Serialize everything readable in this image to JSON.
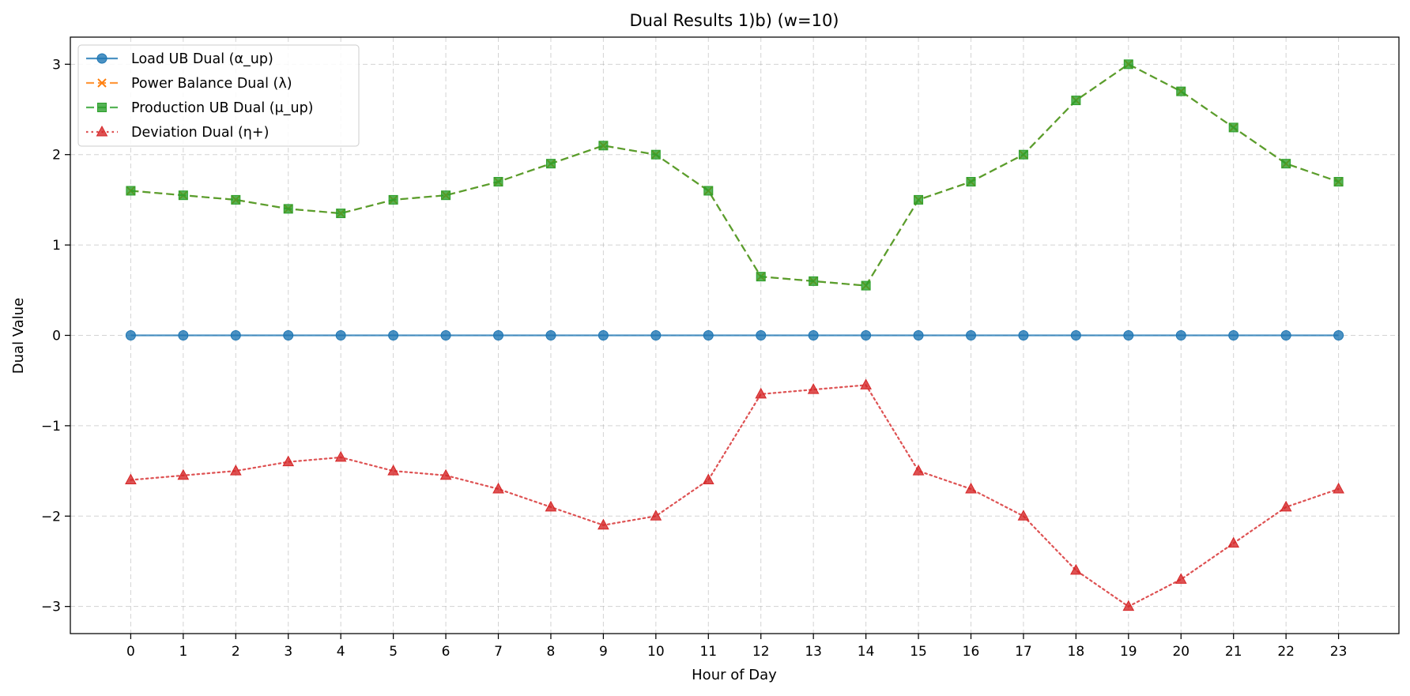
{
  "chart_data": {
    "type": "line",
    "title": "Dual Results 1)b) (w=10)",
    "xlabel": "Hour of Day",
    "ylabel": "Dual Value",
    "x": [
      0,
      1,
      2,
      3,
      4,
      5,
      6,
      7,
      8,
      9,
      10,
      11,
      12,
      13,
      14,
      15,
      16,
      17,
      18,
      19,
      20,
      21,
      22,
      23
    ],
    "xticks": [
      "0",
      "1",
      "2",
      "3",
      "4",
      "5",
      "6",
      "7",
      "8",
      "9",
      "10",
      "11",
      "12",
      "13",
      "14",
      "15",
      "16",
      "17",
      "18",
      "19",
      "20",
      "21",
      "22",
      "23"
    ],
    "xlim": [
      -1.15,
      24.15
    ],
    "ylim": [
      -3.3,
      3.3
    ],
    "yticks": [
      3,
      2,
      1,
      0,
      -1,
      -2,
      -3
    ],
    "ytick_labels": [
      "3",
      "2",
      "1",
      "0",
      "−1",
      "−2",
      "−3"
    ],
    "grid": true,
    "legend_position": "top-left",
    "series": [
      {
        "name": "Load UB Dual (α_up)",
        "color": "#1f77b4",
        "line_style": "solid",
        "marker": "circle",
        "values": [
          0,
          0,
          0,
          0,
          0,
          0,
          0,
          0,
          0,
          0,
          0,
          0,
          0,
          0,
          0,
          0,
          0,
          0,
          0,
          0,
          0,
          0,
          0,
          0
        ]
      },
      {
        "name": "Power Balance Dual (λ)",
        "color": "#ff7f0e",
        "line_style": "dashed",
        "marker": "x",
        "values": [
          1.6,
          1.55,
          1.5,
          1.4,
          1.35,
          1.5,
          1.55,
          1.7,
          1.9,
          2.1,
          2.0,
          1.6,
          0.65,
          0.6,
          0.55,
          1.5,
          1.7,
          2.0,
          2.6,
          3.0,
          2.7,
          2.3,
          1.9,
          1.7
        ]
      },
      {
        "name": "Production UB Dual (μ_up)",
        "color": "#2ca02c",
        "line_style": "dashed",
        "marker": "square",
        "values": [
          1.6,
          1.55,
          1.5,
          1.4,
          1.35,
          1.5,
          1.55,
          1.7,
          1.9,
          2.1,
          2.0,
          1.6,
          0.65,
          0.6,
          0.55,
          1.5,
          1.7,
          2.0,
          2.6,
          3.0,
          2.7,
          2.3,
          1.9,
          1.7
        ]
      },
      {
        "name": "Deviation Dual (η+)",
        "color": "#d62728",
        "line_style": "dotted",
        "marker": "triangle",
        "values": [
          -1.6,
          -1.55,
          -1.5,
          -1.4,
          -1.35,
          -1.5,
          -1.55,
          -1.7,
          -1.9,
          -2.1,
          -2.0,
          -1.6,
          -0.65,
          -0.6,
          -0.55,
          -1.5,
          -1.7,
          -2.0,
          -2.6,
          -3.0,
          -2.7,
          -2.3,
          -1.9,
          -1.7
        ]
      }
    ]
  }
}
